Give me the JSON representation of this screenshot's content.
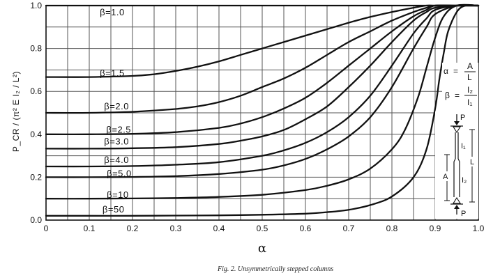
{
  "chart_data": {
    "type": "line",
    "title": "",
    "xlabel": "α",
    "ylabel": "P_CR / (π² E I₂ / L²)",
    "xlim": [
      0,
      1.0
    ],
    "ylim": [
      0,
      1.0
    ],
    "x_ticks": [
      "0",
      "0.1",
      "0.2",
      "0.3",
      "0.4",
      "0.5",
      "0.6",
      "0.7",
      "0.8",
      "0.9",
      "1.0"
    ],
    "y_ticks": [
      "0.0",
      "0.2",
      "0.4",
      "0.6",
      "0.8",
      "1.0"
    ],
    "grid": true,
    "series": [
      {
        "name": "β = 1.0",
        "label": "β=1.0",
        "x": [
          0,
          0.05,
          0.1,
          0.15,
          0.2,
          0.25,
          0.3,
          0.35,
          0.4,
          0.45,
          0.5,
          0.55,
          0.6,
          0.65,
          0.7,
          0.75,
          0.8,
          0.85,
          0.9,
          0.95,
          1.0
        ],
        "y": [
          1,
          1,
          1,
          1,
          1,
          1,
          1,
          1,
          1,
          1,
          1,
          1,
          1,
          1,
          1,
          1,
          1,
          1,
          1,
          1,
          1
        ]
      },
      {
        "name": "β = 1.5",
        "label": "β=1.5",
        "x": [
          0,
          0.1,
          0.2,
          0.25,
          0.3,
          0.35,
          0.4,
          0.45,
          0.5,
          0.55,
          0.6,
          0.65,
          0.7,
          0.75,
          0.8,
          0.85,
          0.88,
          0.9,
          0.95,
          1.0
        ],
        "y": [
          0.667,
          0.667,
          0.672,
          0.68,
          0.695,
          0.715,
          0.74,
          0.77,
          0.8,
          0.83,
          0.86,
          0.89,
          0.92,
          0.947,
          0.97,
          0.99,
          1.0,
          1.0,
          1.0,
          1.0
        ]
      },
      {
        "name": "β = 2.0",
        "label": "β=2.0",
        "x": [
          0,
          0.1,
          0.2,
          0.3,
          0.35,
          0.4,
          0.45,
          0.5,
          0.55,
          0.6,
          0.65,
          0.7,
          0.75,
          0.8,
          0.85,
          0.88,
          0.9,
          0.95,
          1.0
        ],
        "y": [
          0.5,
          0.5,
          0.505,
          0.518,
          0.53,
          0.55,
          0.58,
          0.62,
          0.66,
          0.71,
          0.77,
          0.83,
          0.88,
          0.93,
          0.97,
          0.99,
          1.0,
          1.0,
          1.0
        ]
      },
      {
        "name": "β = 2.5",
        "label": "β=2.5",
        "x": [
          0,
          0.1,
          0.2,
          0.3,
          0.4,
          0.45,
          0.5,
          0.55,
          0.6,
          0.65,
          0.7,
          0.75,
          0.8,
          0.85,
          0.88,
          0.9,
          0.95,
          1.0
        ],
        "y": [
          0.4,
          0.4,
          0.402,
          0.41,
          0.43,
          0.45,
          0.48,
          0.52,
          0.57,
          0.64,
          0.72,
          0.8,
          0.88,
          0.95,
          0.98,
          1.0,
          1.0,
          1.0
        ]
      },
      {
        "name": "β = 3.0",
        "label": "β=3.0",
        "x": [
          0,
          0.1,
          0.2,
          0.3,
          0.4,
          0.45,
          0.5,
          0.55,
          0.6,
          0.65,
          0.7,
          0.75,
          0.8,
          0.85,
          0.88,
          0.9,
          0.95,
          1.0
        ],
        "y": [
          0.333,
          0.333,
          0.335,
          0.34,
          0.355,
          0.37,
          0.39,
          0.42,
          0.47,
          0.53,
          0.62,
          0.72,
          0.83,
          0.93,
          0.97,
          0.99,
          1.0,
          1.0
        ]
      },
      {
        "name": "β = 4.0",
        "label": "β=4.0",
        "x": [
          0,
          0.1,
          0.2,
          0.3,
          0.4,
          0.5,
          0.55,
          0.6,
          0.65,
          0.7,
          0.75,
          0.8,
          0.85,
          0.88,
          0.9,
          0.95,
          1.0
        ],
        "y": [
          0.25,
          0.25,
          0.252,
          0.258,
          0.27,
          0.3,
          0.325,
          0.36,
          0.41,
          0.48,
          0.58,
          0.72,
          0.87,
          0.94,
          0.98,
          1.0,
          1.0
        ]
      },
      {
        "name": "β = 5.0",
        "label": "β=5.0",
        "x": [
          0,
          0.1,
          0.2,
          0.3,
          0.4,
          0.5,
          0.55,
          0.6,
          0.65,
          0.7,
          0.75,
          0.8,
          0.85,
          0.88,
          0.9,
          0.95,
          1.0
        ],
        "y": [
          0.2,
          0.2,
          0.201,
          0.205,
          0.215,
          0.235,
          0.255,
          0.285,
          0.33,
          0.39,
          0.48,
          0.62,
          0.8,
          0.9,
          0.96,
          1.0,
          1.0
        ]
      },
      {
        "name": "β = 10",
        "label": "β=10",
        "x": [
          0,
          0.1,
          0.2,
          0.3,
          0.4,
          0.5,
          0.6,
          0.65,
          0.7,
          0.75,
          0.8,
          0.83,
          0.86,
          0.88,
          0.9,
          0.92,
          0.95,
          1.0
        ],
        "y": [
          0.1,
          0.1,
          0.101,
          0.103,
          0.108,
          0.118,
          0.14,
          0.16,
          0.19,
          0.24,
          0.33,
          0.42,
          0.57,
          0.71,
          0.85,
          0.95,
          1.0,
          1.0
        ]
      },
      {
        "name": "β = 50",
        "label": "β=50",
        "x": [
          0,
          0.1,
          0.2,
          0.3,
          0.4,
          0.5,
          0.6,
          0.65,
          0.7,
          0.75,
          0.8,
          0.85,
          0.88,
          0.9,
          0.91,
          0.92,
          0.93,
          0.95,
          0.97,
          1.0
        ],
        "y": [
          0.02,
          0.02,
          0.02,
          0.021,
          0.022,
          0.025,
          0.03,
          0.037,
          0.048,
          0.07,
          0.11,
          0.2,
          0.33,
          0.52,
          0.66,
          0.78,
          0.88,
          0.97,
          1.0,
          1.0
        ]
      }
    ]
  },
  "legend": {
    "alpha_symbol": "α",
    "equals": "=",
    "alpha_num": "A",
    "alpha_den": "L",
    "beta_symbol": "β",
    "beta_num": "I₂",
    "beta_den": "I₁"
  },
  "schematic": {
    "load_top": "P",
    "load_bottom": "P",
    "i1": "I₁",
    "i2": "I₂",
    "dim_a": "A",
    "dim_l": "L"
  },
  "caption": "Fig. 2.   Unsymmetrically stepped columns"
}
